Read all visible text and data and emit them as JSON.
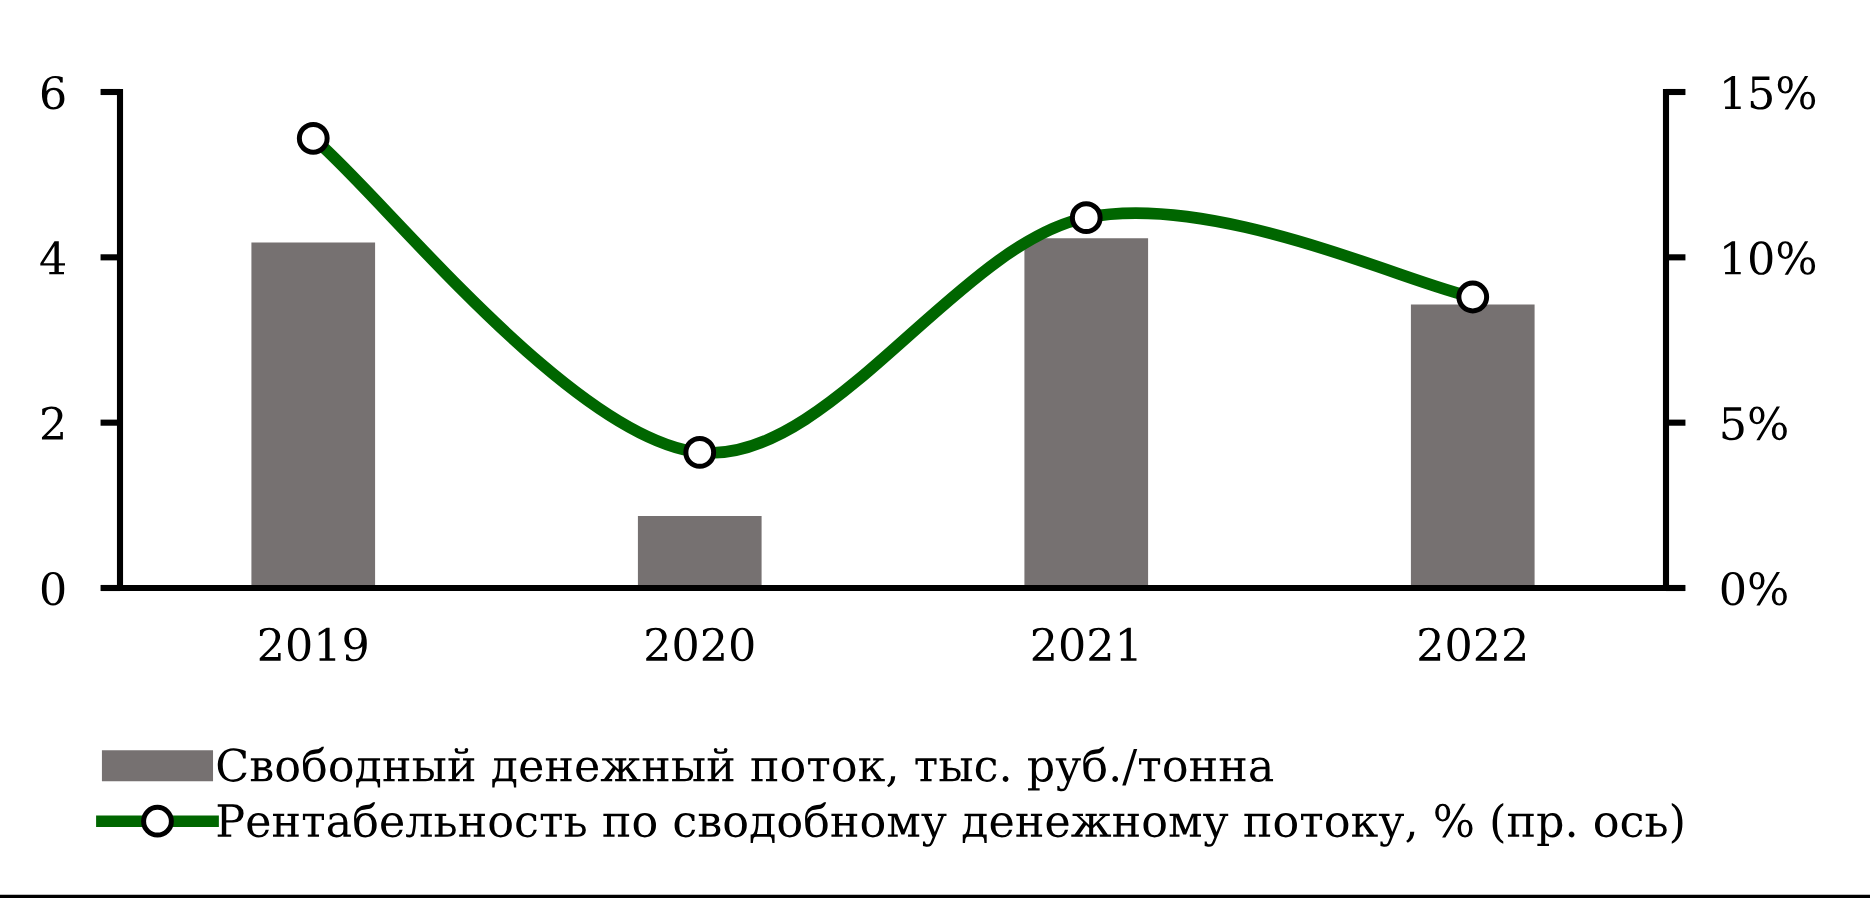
{
  "chart_data": {
    "type": "bar",
    "categories": [
      "2019",
      "2020",
      "2021",
      "2022"
    ],
    "series": [
      {
        "name": "Свободный денежный поток, тыс. руб./тонна",
        "color": "#767171",
        "values": [
          4.18,
          0.87,
          4.23,
          3.43
        ]
      },
      {
        "name": "Рентабельность по сводобному денежному потоку, % (пр. ось)",
        "type": "line",
        "axis": "y2",
        "color": "#006600",
        "values": [
          13.6,
          4.1,
          11.2,
          8.8
        ]
      }
    ],
    "ylim": [
      0,
      6
    ],
    "yticks": [
      0,
      2,
      4,
      6
    ],
    "y2lim": [
      0,
      15
    ],
    "y2ticks": [
      {
        "value": 0,
        "label": "0%"
      },
      {
        "value": 5,
        "label": "5%"
      },
      {
        "value": 10,
        "label": "10%"
      },
      {
        "value": 15,
        "label": "15%"
      }
    ],
    "legend": "bottom",
    "marker": "circle",
    "line_style": "solid",
    "grid": false
  }
}
